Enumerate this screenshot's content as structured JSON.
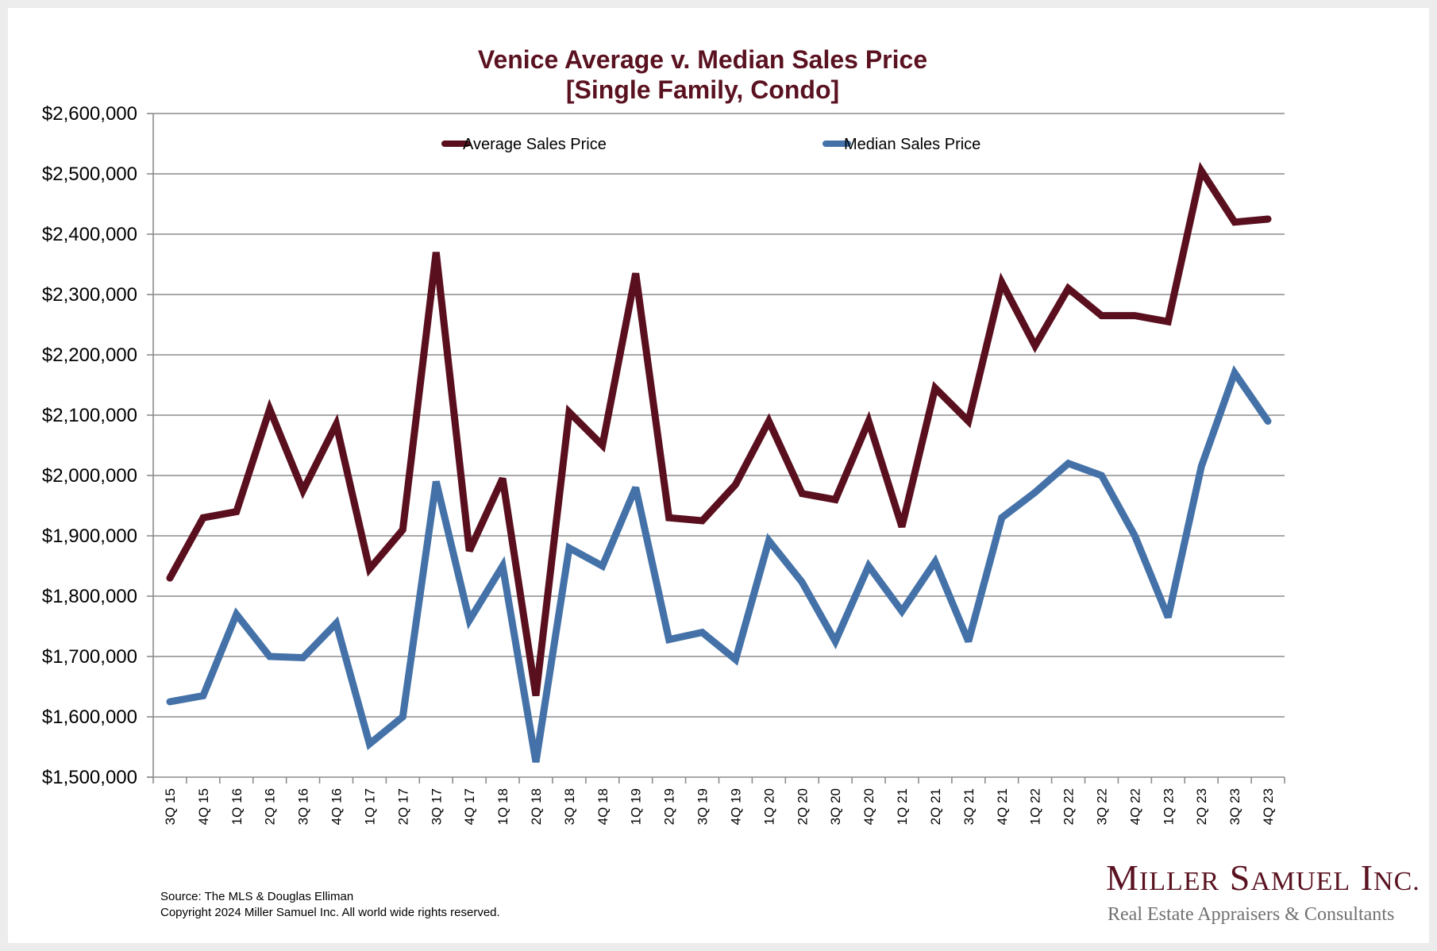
{
  "chart_data": {
    "type": "line",
    "title": "Venice Average v. Median Sales Price",
    "subtitle": "[Single Family, Condo]",
    "xlabel": "",
    "ylabel": "",
    "ylim": [
      1500000,
      2600000
    ],
    "ytick_step": 100000,
    "yticks": [
      "$1,500,000",
      "$1,600,000",
      "$1,700,000",
      "$1,800,000",
      "$1,900,000",
      "$2,000,000",
      "$2,100,000",
      "$2,200,000",
      "$2,300,000",
      "$2,400,000",
      "$2,500,000",
      "$2,600,000"
    ],
    "grid": true,
    "legend_position": "top-center",
    "categories": [
      "3Q 15",
      "4Q 15",
      "1Q 16",
      "2Q 16",
      "3Q 16",
      "4Q 16",
      "1Q 17",
      "2Q 17",
      "3Q 17",
      "4Q 17",
      "1Q 18",
      "2Q 18",
      "3Q 18",
      "4Q 18",
      "1Q 19",
      "2Q 19",
      "3Q 19",
      "4Q 19",
      "1Q 20",
      "2Q 20",
      "3Q 20",
      "4Q 20",
      "1Q 21",
      "2Q 21",
      "3Q 21",
      "4Q 21",
      "1Q 22",
      "2Q 22",
      "3Q 22",
      "4Q 22",
      "1Q 23",
      "2Q 23",
      "3Q 23",
      "4Q 23"
    ],
    "series": [
      {
        "name": "Average Sales Price",
        "color": "#5a0f1e",
        "values": [
          1830000,
          1930000,
          1940000,
          2110000,
          1975000,
          2085000,
          1845000,
          1910000,
          2370000,
          1875000,
          1995000,
          1635000,
          2105000,
          2050000,
          2335000,
          1930000,
          1925000,
          1985000,
          2090000,
          1970000,
          1960000,
          2090000,
          1915000,
          2145000,
          2090000,
          2320000,
          2215000,
          2310000,
          2265000,
          2265000,
          2255000,
          2505000,
          2420000,
          2425000
        ]
      },
      {
        "name": "Median Sales Price",
        "color": "#4472a8",
        "values": [
          1625000,
          1635000,
          1770000,
          1700000,
          1698000,
          1755000,
          1555000,
          1600000,
          1990000,
          1760000,
          1850000,
          1525000,
          1880000,
          1850000,
          1980000,
          1728000,
          1740000,
          1695000,
          1892000,
          1823000,
          1725000,
          1850000,
          1775000,
          1857000,
          1725000,
          1930000,
          1972000,
          2020000,
          2000000,
          1900000,
          1765000,
          2015000,
          2170000,
          2090000
        ]
      }
    ]
  },
  "footer": {
    "source": "Source: The MLS & Douglas Elliman",
    "copyright": "Copyright 2024 Miller Samuel Inc.  All world wide rights reserved."
  },
  "logo": {
    "name_parts": [
      {
        "big": "M",
        "small": "ILLER"
      },
      {
        "big": "S",
        "small": "AMUEL"
      },
      {
        "big": "I",
        "small": "NC."
      }
    ],
    "tagline": "Real Estate Appraisers & Consultants"
  }
}
